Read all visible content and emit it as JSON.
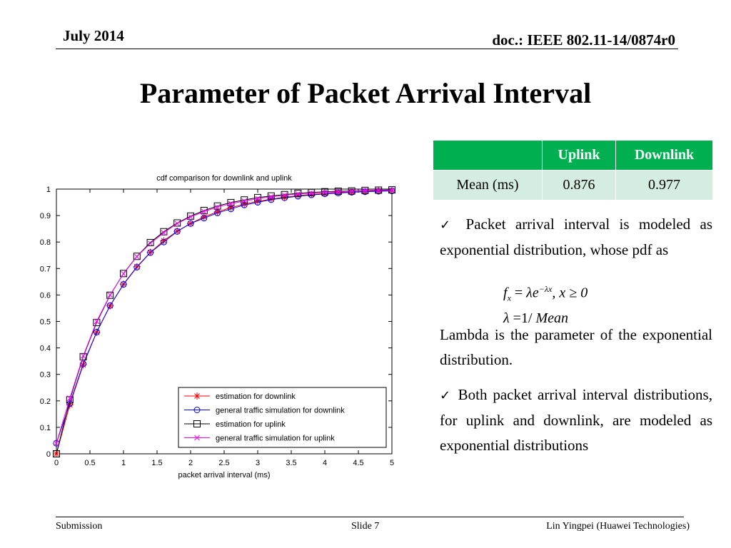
{
  "header": {
    "date": "July 2014",
    "doc": "doc.: IEEE 802.11-14/0874r0"
  },
  "title": "Parameter of Packet Arrival Interval",
  "table": {
    "columns": [
      "",
      "Uplink",
      "Downlink"
    ],
    "rows": [
      [
        "Mean (ms)",
        "0.876",
        "0.977"
      ]
    ],
    "header_color": "#00b050",
    "row_color": "#d5ece1"
  },
  "bullets": {
    "b1": "Packet arrival interval is modeled as exponential distribution, whose pdf as",
    "para": "Lambda is the parameter of the exponential distribution.",
    "b2": "Both packet arrival interval distributions, for uplink and downlink, are modeled as exponential distributions"
  },
  "formula": {
    "f": "f",
    "x_sub": "x",
    "eq": "=",
    "lambda": "λ",
    "e": "e",
    "exp": "−λx",
    "cond": ", x ≥ 0",
    "l2": "λ",
    "eq2": "=",
    "one": "1",
    "slash": "/",
    "mean": "Mean"
  },
  "footer": {
    "left": "Submission",
    "center": "Slide 7",
    "right": "Lin Yingpei (Huawei Technologies)"
  },
  "chart_data": {
    "type": "line",
    "title": "cdf comparison for downlink and uplink",
    "xlabel": "packet arrival interval (ms)",
    "ylabel": "",
    "xlim": [
      0,
      5
    ],
    "ylim": [
      0,
      1
    ],
    "xticks": [
      0,
      0.5,
      1,
      1.5,
      2,
      2.5,
      3,
      3.5,
      4,
      4.5,
      5
    ],
    "yticks": [
      0,
      0.1,
      0.2,
      0.3,
      0.4,
      0.5,
      0.6,
      0.7,
      0.8,
      0.9,
      1
    ],
    "grid": false,
    "legend_position": "bottom-right",
    "x": [
      0,
      0.2,
      0.4,
      0.6,
      0.8,
      1.0,
      1.2,
      1.4,
      1.6,
      1.8,
      2.0,
      2.2,
      2.4,
      2.6,
      2.8,
      3.0,
      3.2,
      3.4,
      3.6,
      3.8,
      4.0,
      4.2,
      4.4,
      4.6,
      4.8,
      5.0
    ],
    "series": [
      {
        "name": "estimation for downlink",
        "color": "#ff0000",
        "marker": "star",
        "values": [
          0,
          0.185,
          0.336,
          0.459,
          0.559,
          0.641,
          0.707,
          0.761,
          0.805,
          0.841,
          0.87,
          0.895,
          0.914,
          0.93,
          0.943,
          0.954,
          0.962,
          0.969,
          0.975,
          0.98,
          0.983,
          0.987,
          0.989,
          0.991,
          0.993,
          0.994
        ]
      },
      {
        "name": "general traffic simulation for downlink",
        "color": "#0000ff",
        "marker": "circle",
        "values": [
          0.04,
          0.19,
          0.34,
          0.46,
          0.56,
          0.64,
          0.705,
          0.76,
          0.8,
          0.84,
          0.87,
          0.89,
          0.91,
          0.925,
          0.94,
          0.95,
          0.96,
          0.967,
          0.973,
          0.978,
          0.982,
          0.985,
          0.988,
          0.99,
          0.992,
          0.993
        ]
      },
      {
        "name": "estimation for uplink",
        "color": "#000000",
        "marker": "square",
        "values": [
          0,
          0.204,
          0.367,
          0.496,
          0.599,
          0.681,
          0.746,
          0.798,
          0.839,
          0.872,
          0.898,
          0.919,
          0.936,
          0.949,
          0.959,
          0.968,
          0.974,
          0.979,
          0.984,
          0.987,
          0.99,
          0.992,
          0.993,
          0.995,
          0.996,
          0.997
        ]
      },
      {
        "name": "general traffic simulation for uplink",
        "color": "#ff00ff",
        "marker": "x",
        "values": [
          0.04,
          0.21,
          0.37,
          0.5,
          0.6,
          0.68,
          0.745,
          0.795,
          0.835,
          0.87,
          0.895,
          0.915,
          0.932,
          0.945,
          0.955,
          0.964,
          0.971,
          0.977,
          0.982,
          0.985,
          0.988,
          0.99,
          0.992,
          0.994,
          0.995,
          0.996
        ]
      }
    ]
  }
}
